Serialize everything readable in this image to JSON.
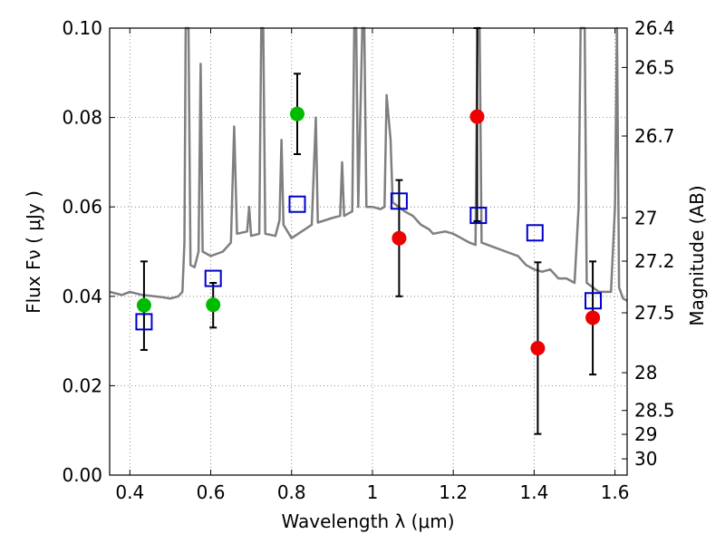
{
  "chart_data": {
    "type": "scatter",
    "xlabel": "Wavelength  λ (μm)",
    "ylabel": "Flux  Fν  ( μJy )",
    "y2label": "Magnitude (AB)",
    "xlim": [
      0.35,
      1.63
    ],
    "ylim": [
      0.0,
      0.1
    ],
    "grid": true,
    "x_ticks": [
      {
        "value": 0.4,
        "label": "0.4"
      },
      {
        "value": 0.6,
        "label": "0.6"
      },
      {
        "value": 0.8,
        "label": "0.8"
      },
      {
        "value": 1.0,
        "label": "1"
      },
      {
        "value": 1.2,
        "label": "1.2"
      },
      {
        "value": 1.4,
        "label": "1.4"
      },
      {
        "value": 1.6,
        "label": "1.6"
      }
    ],
    "y_ticks": [
      {
        "value": 0.0,
        "label": "0.00"
      },
      {
        "value": 0.02,
        "label": "0.02"
      },
      {
        "value": 0.04,
        "label": "0.04"
      },
      {
        "value": 0.06,
        "label": "0.06"
      },
      {
        "value": 0.08,
        "label": "0.08"
      },
      {
        "value": 0.1,
        "label": "0.10"
      }
    ],
    "y2_ticks": [
      {
        "value": 26.4,
        "label": "26.4"
      },
      {
        "value": 26.5,
        "label": "26.5"
      },
      {
        "value": 26.7,
        "label": "26.7"
      },
      {
        "value": 27,
        "label": "27"
      },
      {
        "value": 27.2,
        "label": "27.2"
      },
      {
        "value": 27.5,
        "label": "27.5"
      },
      {
        "value": 28,
        "label": "28"
      },
      {
        "value": 28.5,
        "label": "28.5"
      },
      {
        "value": 29,
        "label": "29"
      },
      {
        "value": 30,
        "label": "30"
      }
    ],
    "series": [
      {
        "kind": "line",
        "color": "#7f7f7f",
        "points": [
          [
            0.35,
            0.041
          ],
          [
            0.38,
            0.0403
          ],
          [
            0.4,
            0.041
          ],
          [
            0.43,
            0.0403
          ],
          [
            0.46,
            0.04
          ],
          [
            0.48,
            0.0398
          ],
          [
            0.5,
            0.0395
          ],
          [
            0.52,
            0.04
          ],
          [
            0.53,
            0.041
          ],
          [
            0.535,
            0.052
          ],
          [
            0.538,
            0.1
          ],
          [
            0.545,
            0.1
          ],
          [
            0.55,
            0.047
          ],
          [
            0.56,
            0.0465
          ],
          [
            0.57,
            0.05
          ],
          [
            0.575,
            0.092
          ],
          [
            0.58,
            0.05
          ],
          [
            0.6,
            0.049
          ],
          [
            0.63,
            0.05
          ],
          [
            0.65,
            0.052
          ],
          [
            0.658,
            0.078
          ],
          [
            0.665,
            0.054
          ],
          [
            0.69,
            0.0545
          ],
          [
            0.695,
            0.06
          ],
          [
            0.7,
            0.0535
          ],
          [
            0.72,
            0.054
          ],
          [
            0.725,
            0.1
          ],
          [
            0.73,
            0.1
          ],
          [
            0.735,
            0.054
          ],
          [
            0.76,
            0.0535
          ],
          [
            0.77,
            0.057
          ],
          [
            0.775,
            0.075
          ],
          [
            0.78,
            0.056
          ],
          [
            0.8,
            0.053
          ],
          [
            0.85,
            0.056
          ],
          [
            0.86,
            0.08
          ],
          [
            0.865,
            0.0565
          ],
          [
            0.9,
            0.0575
          ],
          [
            0.92,
            0.058
          ],
          [
            0.925,
            0.07
          ],
          [
            0.93,
            0.058
          ],
          [
            0.95,
            0.059
          ],
          [
            0.955,
            0.1
          ],
          [
            0.96,
            0.1
          ],
          [
            0.965,
            0.06
          ],
          [
            0.975,
            0.1
          ],
          [
            0.98,
            0.1
          ],
          [
            0.985,
            0.06
          ],
          [
            1.0,
            0.06
          ],
          [
            1.02,
            0.0595
          ],
          [
            1.03,
            0.06
          ],
          [
            1.035,
            0.085
          ],
          [
            1.045,
            0.075
          ],
          [
            1.05,
            0.061
          ],
          [
            1.08,
            0.059
          ],
          [
            1.1,
            0.058
          ],
          [
            1.11,
            0.057
          ],
          [
            1.12,
            0.056
          ],
          [
            1.14,
            0.055
          ],
          [
            1.15,
            0.054
          ],
          [
            1.18,
            0.0545
          ],
          [
            1.2,
            0.054
          ],
          [
            1.22,
            0.053
          ],
          [
            1.24,
            0.052
          ],
          [
            1.255,
            0.0515
          ],
          [
            1.26,
            0.1
          ],
          [
            1.265,
            0.1
          ],
          [
            1.27,
            0.052
          ],
          [
            1.3,
            0.051
          ],
          [
            1.33,
            0.05
          ],
          [
            1.36,
            0.049
          ],
          [
            1.38,
            0.047
          ],
          [
            1.4,
            0.046
          ],
          [
            1.42,
            0.0455
          ],
          [
            1.44,
            0.046
          ],
          [
            1.46,
            0.044
          ],
          [
            1.48,
            0.044
          ],
          [
            1.5,
            0.043
          ],
          [
            1.51,
            0.06
          ],
          [
            1.515,
            0.1
          ],
          [
            1.525,
            0.1
          ],
          [
            1.53,
            0.043
          ],
          [
            1.56,
            0.041
          ],
          [
            1.59,
            0.041
          ],
          [
            1.6,
            0.06
          ],
          [
            1.605,
            0.1
          ],
          [
            1.61,
            0.042
          ],
          [
            1.62,
            0.0395
          ],
          [
            1.63,
            0.039
          ]
        ]
      },
      {
        "kind": "marker",
        "marker": "circle",
        "color": "#00bb00",
        "points": [
          {
            "x": 0.435,
            "y": 0.038,
            "err_low": 0.028,
            "err_high": 0.0478
          },
          {
            "x": 0.606,
            "y": 0.0381,
            "err_low": 0.033,
            "err_high": 0.043
          },
          {
            "x": 0.814,
            "y": 0.0808,
            "err_low": 0.0718,
            "err_high": 0.0898
          }
        ]
      },
      {
        "kind": "marker",
        "marker": "circle",
        "color": "#ee0000",
        "points": [
          {
            "x": 1.066,
            "y": 0.053,
            "err_low": 0.04,
            "err_high": 0.066
          },
          {
            "x": 1.259,
            "y": 0.0802,
            "err_low": 0.0568,
            "err_high": 0.1
          },
          {
            "x": 1.409,
            "y": 0.0284,
            "err_low": 0.0092,
            "err_high": 0.0476
          },
          {
            "x": 1.545,
            "y": 0.0352,
            "err_low": 0.0225,
            "err_high": 0.0478
          }
        ]
      },
      {
        "kind": "marker",
        "marker": "square-open",
        "color": "#0000cc",
        "points": [
          {
            "x": 0.435,
            "y": 0.0343
          },
          {
            "x": 0.606,
            "y": 0.044
          },
          {
            "x": 0.814,
            "y": 0.0606
          },
          {
            "x": 1.066,
            "y": 0.0613
          },
          {
            "x": 1.262,
            "y": 0.0581
          },
          {
            "x": 1.402,
            "y": 0.0542
          },
          {
            "x": 1.546,
            "y": 0.039
          }
        ]
      }
    ]
  }
}
